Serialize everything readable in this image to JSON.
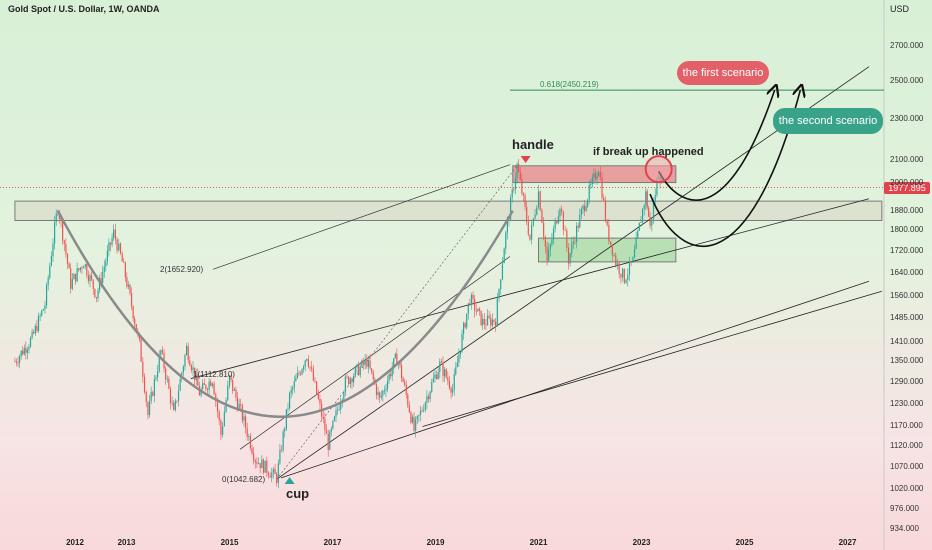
{
  "chart_data": {
    "type": "candlestick",
    "title": "Gold Spot / U.S. Dollar, 1W, OANDA",
    "currency": "USD",
    "last_price": "1977.895",
    "y_ticks": [
      "2700.000",
      "2500.000",
      "2300.000",
      "2100.000",
      "2000.000",
      "1880.000",
      "1800.000",
      "1720.000",
      "1640.000",
      "1560.000",
      "1485.000",
      "1410.000",
      "1350.000",
      "1290.000",
      "1230.000",
      "1170.000",
      "1120.000",
      "1070.000",
      "1020.000",
      "976.000",
      "934.000"
    ],
    "x_ticks": [
      "2012",
      "2013",
      "2015",
      "2017",
      "2019",
      "2021",
      "2023",
      "2025",
      "2027"
    ],
    "price_path": [
      {
        "date": "2010-11",
        "price": 1350
      },
      {
        "date": "2011-03",
        "price": 1420
      },
      {
        "date": "2011-06",
        "price": 1530
      },
      {
        "date": "2011-09",
        "price": 1900
      },
      {
        "date": "2011-12",
        "price": 1600
      },
      {
        "date": "2012-03",
        "price": 1680
      },
      {
        "date": "2012-06",
        "price": 1560
      },
      {
        "date": "2012-10",
        "price": 1790
      },
      {
        "date": "2012-12",
        "price": 1680
      },
      {
        "date": "2013-04",
        "price": 1400
      },
      {
        "date": "2013-06",
        "price": 1200
      },
      {
        "date": "2013-09",
        "price": 1380
      },
      {
        "date": "2013-12",
        "price": 1200
      },
      {
        "date": "2014-03",
        "price": 1390
      },
      {
        "date": "2014-06",
        "price": 1260
      },
      {
        "date": "2014-09",
        "price": 1300
      },
      {
        "date": "2014-11",
        "price": 1150
      },
      {
        "date": "2015-01",
        "price": 1300
      },
      {
        "date": "2015-07",
        "price": 1090
      },
      {
        "date": "2015-12",
        "price": 1045
      },
      {
        "date": "2016-03",
        "price": 1250
      },
      {
        "date": "2016-07",
        "price": 1370
      },
      {
        "date": "2016-12",
        "price": 1125
      },
      {
        "date": "2017-04",
        "price": 1290
      },
      {
        "date": "2017-09",
        "price": 1350
      },
      {
        "date": "2017-12",
        "price": 1240
      },
      {
        "date": "2018-04",
        "price": 1365
      },
      {
        "date": "2018-08",
        "price": 1160
      },
      {
        "date": "2019-02",
        "price": 1340
      },
      {
        "date": "2019-05",
        "price": 1270
      },
      {
        "date": "2019-09",
        "price": 1550
      },
      {
        "date": "2019-12",
        "price": 1470
      },
      {
        "date": "2020-03",
        "price": 1480
      },
      {
        "date": "2020-05",
        "price": 1740
      },
      {
        "date": "2020-08",
        "price": 2075
      },
      {
        "date": "2020-11",
        "price": 1765
      },
      {
        "date": "2021-01",
        "price": 1960
      },
      {
        "date": "2021-03",
        "price": 1680
      },
      {
        "date": "2021-06",
        "price": 1910
      },
      {
        "date": "2021-08",
        "price": 1690
      },
      {
        "date": "2021-11",
        "price": 1870
      },
      {
        "date": "2022-03",
        "price": 2070
      },
      {
        "date": "2022-05",
        "price": 1800
      },
      {
        "date": "2022-07",
        "price": 1680
      },
      {
        "date": "2022-09",
        "price": 1620
      },
      {
        "date": "2022-11",
        "price": 1680
      },
      {
        "date": "2023-02",
        "price": 1950
      },
      {
        "date": "2023-03",
        "price": 1810
      },
      {
        "date": "2023-05",
        "price": 2050
      },
      {
        "date": "2023-06",
        "price": 1978
      }
    ],
    "fib_levels": [
      {
        "label": "0.618(2450.219)",
        "price": 2450.219
      },
      {
        "label": "2(1652.920)",
        "price": 1652.92
      },
      {
        "label": "1(1112.810)",
        "price": 1112.81
      },
      {
        "label": "0(1042.682)",
        "price": 1042.682
      }
    ],
    "zones": [
      {
        "name": "resistance-top",
        "from": "2020-07",
        "to": "2023-09",
        "low": 2000,
        "high": 2075,
        "color": "#e8848a"
      },
      {
        "name": "support-band",
        "from": "2010-11",
        "to": "2027-09",
        "low": 1840,
        "high": 1920,
        "color": "#d9dcc9"
      },
      {
        "name": "demand-zone",
        "from": "2021-01",
        "to": "2023-09",
        "low": 1680,
        "high": 1770,
        "color": "#a9d9a6"
      }
    ],
    "annotations": {
      "handle": "handle",
      "cup": "cup",
      "breakup": "if break up happened",
      "scenario1": "the first scenario",
      "scenario2": "the second scenario"
    },
    "colors": {
      "up": "#26a69a",
      "down": "#ef5350",
      "channel": "#222222",
      "fib_line": "#2e8b57"
    }
  }
}
